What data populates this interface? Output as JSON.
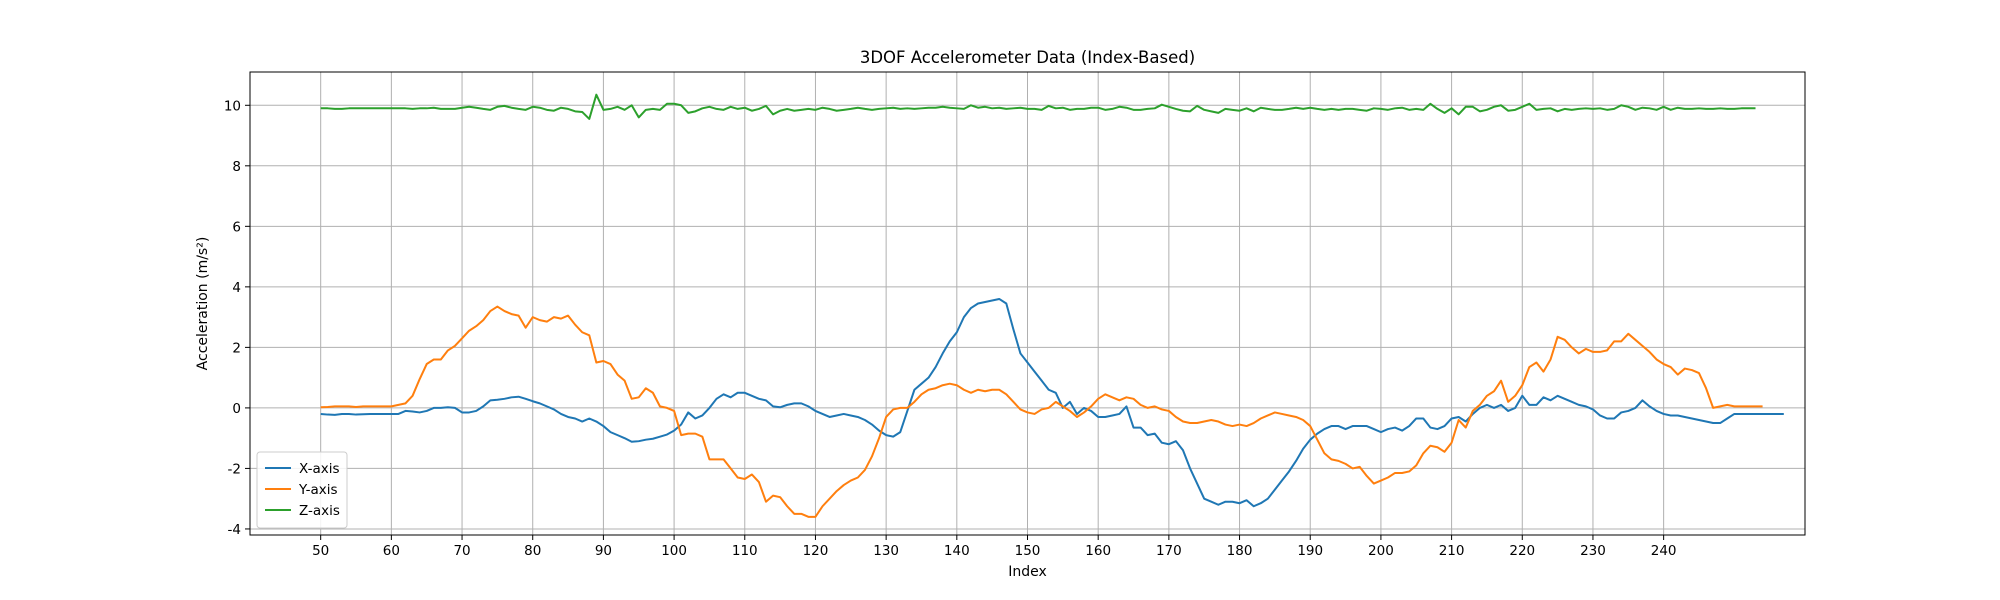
{
  "chart_data": {
    "type": "line",
    "title": "3DOF Accelerometer Data (Index-Based)",
    "xlabel": "Index",
    "ylabel": "Acceleration (m/s²)",
    "xlim": [
      40,
      260
    ],
    "ylim": [
      -4.2,
      11.1
    ],
    "xticks": [
      50,
      60,
      70,
      80,
      90,
      100,
      110,
      120,
      130,
      140,
      150,
      160,
      170,
      180,
      190,
      200,
      210,
      220,
      230,
      240
    ],
    "yticks": [
      -4,
      -2,
      0,
      2,
      4,
      6,
      8,
      10
    ],
    "grid": true,
    "legend_position": "lower-left",
    "x_start": 50,
    "series": [
      {
        "name": "X-axis",
        "color": "#1f77b4",
        "values": [
          -0.2,
          -0.22,
          -0.23,
          -0.2,
          -0.2,
          -0.22,
          -0.21,
          -0.2,
          -0.2,
          -0.2,
          -0.2,
          -0.2,
          -0.1,
          -0.12,
          -0.15,
          -0.1,
          0.0,
          0.0,
          0.02,
          0.0,
          -0.15,
          -0.15,
          -0.1,
          0.05,
          0.25,
          0.27,
          0.3,
          0.35,
          0.37,
          0.3,
          0.22,
          0.15,
          0.05,
          -0.05,
          -0.2,
          -0.3,
          -0.35,
          -0.45,
          -0.35,
          -0.45,
          -0.6,
          -0.8,
          -0.9,
          -1.0,
          -1.12,
          -1.1,
          -1.05,
          -1.02,
          -0.95,
          -0.88,
          -0.75,
          -0.55,
          -0.15,
          -0.35,
          -0.25,
          0.0,
          0.3,
          0.45,
          0.35,
          0.5,
          0.5,
          0.4,
          0.3,
          0.25,
          0.05,
          0.02,
          0.1,
          0.15,
          0.15,
          0.05,
          -0.1,
          -0.2,
          -0.3,
          -0.25,
          -0.2,
          -0.25,
          -0.3,
          -0.4,
          -0.55,
          -0.75,
          -0.9,
          -0.95,
          -0.8,
          -0.1,
          0.6,
          0.8,
          1.0,
          1.35,
          1.8,
          2.2,
          2.5,
          3.0,
          3.3,
          3.45,
          3.5,
          3.55,
          3.6,
          3.45,
          2.6,
          1.8,
          1.5,
          1.2,
          0.9,
          0.6,
          0.5,
          0.0,
          0.2,
          -0.2,
          0.0,
          -0.1,
          -0.3,
          -0.3,
          -0.25,
          -0.2,
          0.05,
          -0.65,
          -0.65,
          -0.9,
          -0.85,
          -1.15,
          -1.2,
          -1.1,
          -1.4,
          -2.0,
          -2.5,
          -3.0,
          -3.1,
          -3.2,
          -3.1,
          -3.1,
          -3.15,
          -3.05,
          -3.25,
          -3.15,
          -3.0,
          -2.7,
          -2.4,
          -2.1,
          -1.75,
          -1.35,
          -1.05,
          -0.85,
          -0.7,
          -0.6,
          -0.6,
          -0.7,
          -0.6,
          -0.6,
          -0.6,
          -0.7,
          -0.8,
          -0.7,
          -0.65,
          -0.75,
          -0.6,
          -0.35,
          -0.35,
          -0.65,
          -0.7,
          -0.6,
          -0.35,
          -0.3,
          -0.45,
          -0.2,
          0.0,
          0.1,
          0.0,
          0.1,
          -0.1,
          0.0,
          0.4,
          0.1,
          0.1,
          0.35,
          0.25,
          0.4,
          0.3,
          0.2,
          0.1,
          0.05,
          -0.05,
          -0.25,
          -0.35,
          -0.35,
          -0.15,
          -0.1,
          0.0,
          0.25,
          0.05,
          -0.1,
          -0.2,
          -0.25,
          -0.25,
          -0.3,
          -0.35,
          -0.4,
          -0.45,
          -0.5,
          -0.5,
          -0.35,
          -0.2,
          -0.2,
          -0.2,
          -0.2,
          -0.2,
          -0.2,
          -0.2,
          -0.2
        ]
      },
      {
        "name": "Y-axis",
        "color": "#ff7f0e",
        "values": [
          0.02,
          0.03,
          0.05,
          0.05,
          0.05,
          0.03,
          0.05,
          0.05,
          0.05,
          0.05,
          0.05,
          0.1,
          0.15,
          0.4,
          0.95,
          1.45,
          1.6,
          1.6,
          1.9,
          2.05,
          2.3,
          2.55,
          2.7,
          2.9,
          3.2,
          3.35,
          3.2,
          3.1,
          3.05,
          2.65,
          3.0,
          2.9,
          2.85,
          3.0,
          2.95,
          3.05,
          2.75,
          2.5,
          2.4,
          1.5,
          1.55,
          1.45,
          1.1,
          0.9,
          0.3,
          0.35,
          0.65,
          0.5,
          0.05,
          0.0,
          -0.1,
          -0.9,
          -0.85,
          -0.85,
          -0.95,
          -1.7,
          -1.7,
          -1.7,
          -2.0,
          -2.3,
          -2.35,
          -2.2,
          -2.45,
          -3.1,
          -2.9,
          -2.95,
          -3.25,
          -3.5,
          -3.5,
          -3.6,
          -3.6,
          -3.25,
          -3.0,
          -2.75,
          -2.55,
          -2.4,
          -2.3,
          -2.05,
          -1.6,
          -1.0,
          -0.3,
          -0.05,
          0.0,
          0.0,
          0.2,
          0.45,
          0.6,
          0.65,
          0.75,
          0.8,
          0.75,
          0.6,
          0.5,
          0.6,
          0.55,
          0.6,
          0.6,
          0.45,
          0.2,
          -0.05,
          -0.15,
          -0.2,
          -0.05,
          0.0,
          0.2,
          0.05,
          -0.1,
          -0.3,
          -0.15,
          0.05,
          0.3,
          0.45,
          0.35,
          0.25,
          0.35,
          0.3,
          0.1,
          0.0,
          0.05,
          -0.05,
          -0.1,
          -0.3,
          -0.45,
          -0.5,
          -0.5,
          -0.45,
          -0.4,
          -0.45,
          -0.55,
          -0.6,
          -0.55,
          -0.6,
          -0.5,
          -0.35,
          -0.25,
          -0.15,
          -0.2,
          -0.25,
          -0.3,
          -0.4,
          -0.6,
          -1.05,
          -1.5,
          -1.7,
          -1.75,
          -1.85,
          -2.0,
          -1.95,
          -2.25,
          -2.5,
          -2.4,
          -2.3,
          -2.15,
          -2.15,
          -2.1,
          -1.9,
          -1.5,
          -1.25,
          -1.3,
          -1.45,
          -1.15,
          -0.4,
          -0.65,
          -0.1,
          0.1,
          0.4,
          0.55,
          0.9,
          0.2,
          0.4,
          0.75,
          1.35,
          1.5,
          1.2,
          1.6,
          2.35,
          2.25,
          2.0,
          1.8,
          1.95,
          1.85,
          1.85,
          1.9,
          2.2,
          2.2,
          2.45,
          2.25,
          2.05,
          1.85,
          1.6,
          1.45,
          1.35,
          1.1,
          1.3,
          1.25,
          1.15,
          0.65,
          0.0,
          0.05,
          0.1,
          0.05,
          0.05,
          0.05,
          0.05,
          0.05
        ]
      },
      {
        "name": "Z-axis",
        "color": "#2ca02c",
        "values": [
          9.9,
          9.9,
          9.88,
          9.88,
          9.9,
          9.9,
          9.9,
          9.9,
          9.9,
          9.9,
          9.9,
          9.9,
          9.9,
          9.88,
          9.9,
          9.9,
          9.92,
          9.88,
          9.88,
          9.88,
          9.92,
          9.95,
          9.92,
          9.88,
          9.85,
          9.95,
          9.98,
          9.92,
          9.88,
          9.85,
          9.95,
          9.92,
          9.85,
          9.82,
          9.92,
          9.88,
          9.8,
          9.78,
          9.55,
          10.35,
          9.85,
          9.88,
          9.95,
          9.85,
          10.0,
          9.6,
          9.85,
          9.88,
          9.85,
          10.05,
          10.05,
          10.0,
          9.75,
          9.8,
          9.9,
          9.95,
          9.88,
          9.85,
          9.95,
          9.88,
          9.92,
          9.82,
          9.88,
          9.98,
          9.7,
          9.82,
          9.88,
          9.82,
          9.85,
          9.88,
          9.85,
          9.92,
          9.88,
          9.82,
          9.85,
          9.88,
          9.92,
          9.88,
          9.85,
          9.88,
          9.9,
          9.92,
          9.88,
          9.9,
          9.88,
          9.9,
          9.92,
          9.92,
          9.95,
          9.92,
          9.9,
          9.88,
          10.0,
          9.92,
          9.95,
          9.9,
          9.92,
          9.88,
          9.9,
          9.92,
          9.88,
          9.88,
          9.85,
          9.98,
          9.9,
          9.92,
          9.85,
          9.88,
          9.88,
          9.92,
          9.92,
          9.85,
          9.88,
          9.95,
          9.92,
          9.85,
          9.85,
          9.88,
          9.9,
          10.02,
          9.95,
          9.88,
          9.82,
          9.8,
          9.98,
          9.85,
          9.8,
          9.75,
          9.88,
          9.85,
          9.82,
          9.9,
          9.8,
          9.92,
          9.88,
          9.85,
          9.85,
          9.88,
          9.92,
          9.88,
          9.92,
          9.88,
          9.85,
          9.88,
          9.85,
          9.88,
          9.88,
          9.85,
          9.82,
          9.9,
          9.88,
          9.85,
          9.9,
          9.92,
          9.85,
          9.88,
          9.85,
          10.05,
          9.88,
          9.75,
          9.9,
          9.7,
          9.95,
          9.95,
          9.8,
          9.85,
          9.95,
          10.0,
          9.82,
          9.85,
          9.95,
          10.05,
          9.85,
          9.88,
          9.9,
          9.8,
          9.88,
          9.85,
          9.88,
          9.9,
          9.88,
          9.9,
          9.85,
          9.88,
          10.0,
          9.95,
          9.85,
          9.92,
          9.9,
          9.85,
          9.95,
          9.85,
          9.92,
          9.88,
          9.88,
          9.9,
          9.88,
          9.88,
          9.9,
          9.88,
          9.88,
          9.9,
          9.9,
          9.9
        ]
      }
    ]
  }
}
